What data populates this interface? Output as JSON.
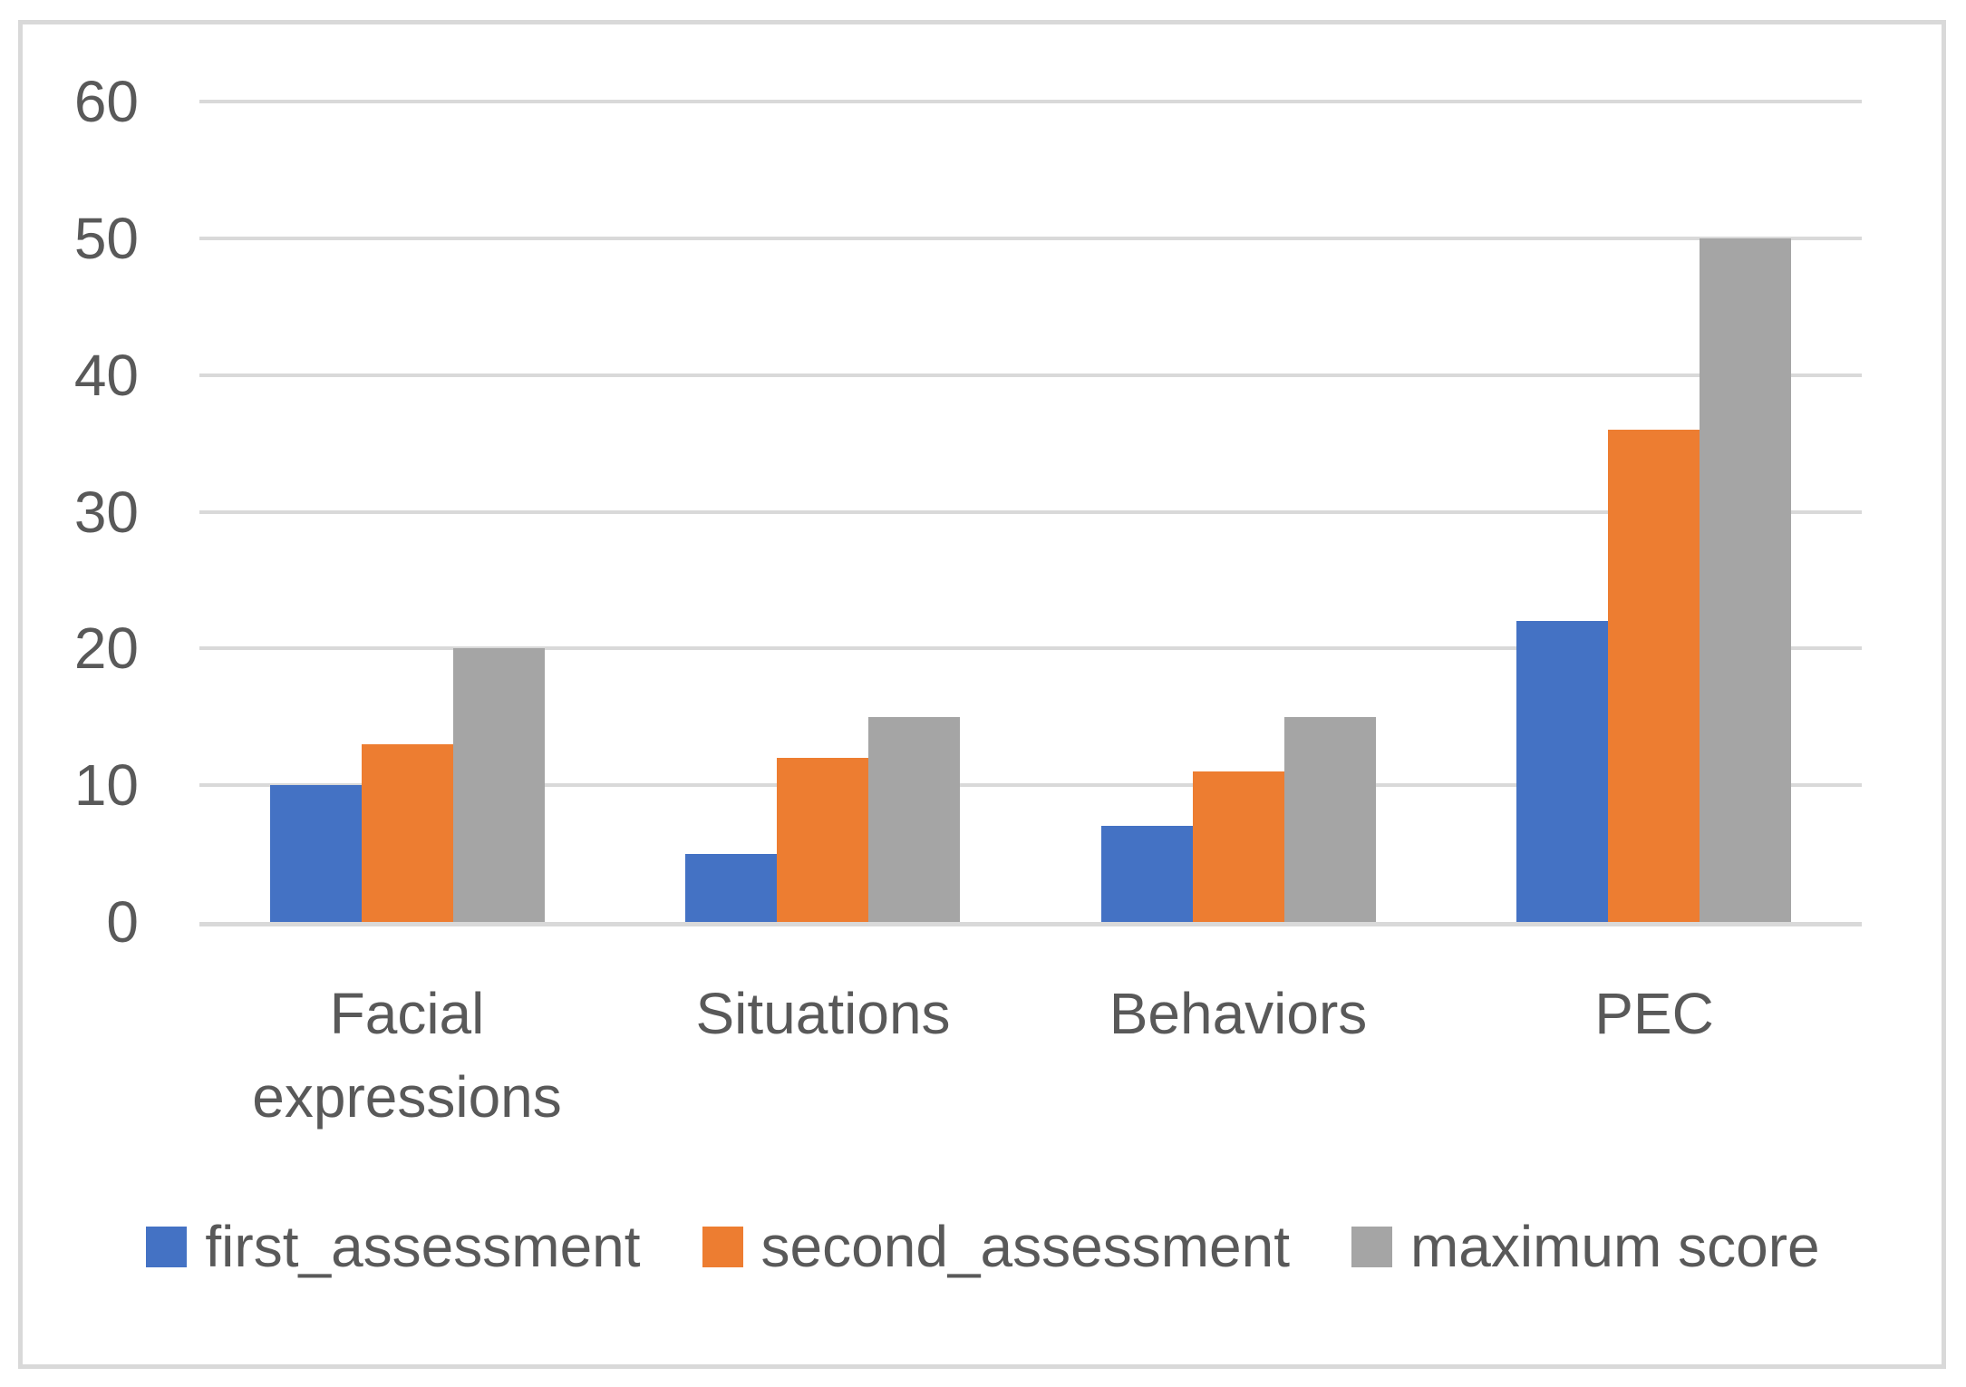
{
  "chart_data": {
    "type": "bar",
    "title": "",
    "xlabel": "",
    "ylabel": "",
    "categories": [
      "Facial expressions",
      "Situations",
      "Behaviors",
      "PEC"
    ],
    "series": [
      {
        "name": "first_assessment",
        "color": "#4472C4",
        "values": [
          10,
          5,
          7,
          22
        ]
      },
      {
        "name": "second_assessment",
        "color": "#ED7D31",
        "values": [
          13,
          12,
          11,
          36
        ]
      },
      {
        "name": "maximum score",
        "color": "#A5A5A5",
        "values": [
          20,
          15,
          15,
          50
        ]
      }
    ],
    "ylim": [
      0,
      60
    ],
    "yticks": [
      0,
      10,
      20,
      30,
      40,
      50,
      60
    ],
    "ytick_labels": [
      "0",
      "10",
      "20",
      "30",
      "40",
      "50",
      "60"
    ],
    "grid": "horizontal",
    "legend_position": "bottom",
    "colors": {
      "gridline": "#D9D9D9",
      "axis_line": "#D9D9D9",
      "frame_border": "#D9D9D9",
      "text": "#595959",
      "background": "#FFFFFF"
    }
  }
}
